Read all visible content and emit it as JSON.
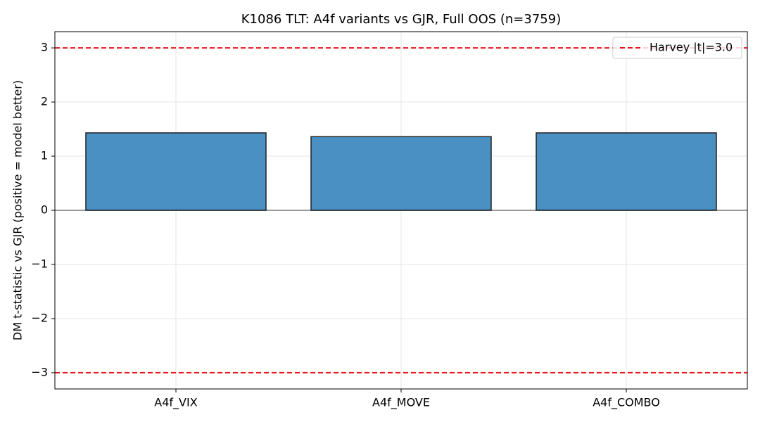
{
  "chart_data": {
    "type": "bar",
    "title": "K1086 TLT: A4f variants vs GJR, Full OOS (n=3759)",
    "y_label": "DM t-statistic vs GJR (positive = model better)",
    "categories": [
      "A4f_VIX",
      "A4f_MOVE",
      "A4f_COMBO"
    ],
    "values": [
      1.43,
      1.36,
      1.43
    ],
    "color": "#4a90c2",
    "ylim": [
      -3.3,
      3.3
    ],
    "yticks": [
      {
        "value": -3,
        "label": "−3"
      },
      {
        "value": -2,
        "label": "−2"
      },
      {
        "value": -1,
        "label": "−1"
      },
      0,
      1,
      2,
      3
    ],
    "grid": true,
    "reference_lines": {
      "name": "Harvey |t|=3.0",
      "color": "#e8141a",
      "values": [
        3,
        -3
      ]
    },
    "legend": "upper right"
  }
}
